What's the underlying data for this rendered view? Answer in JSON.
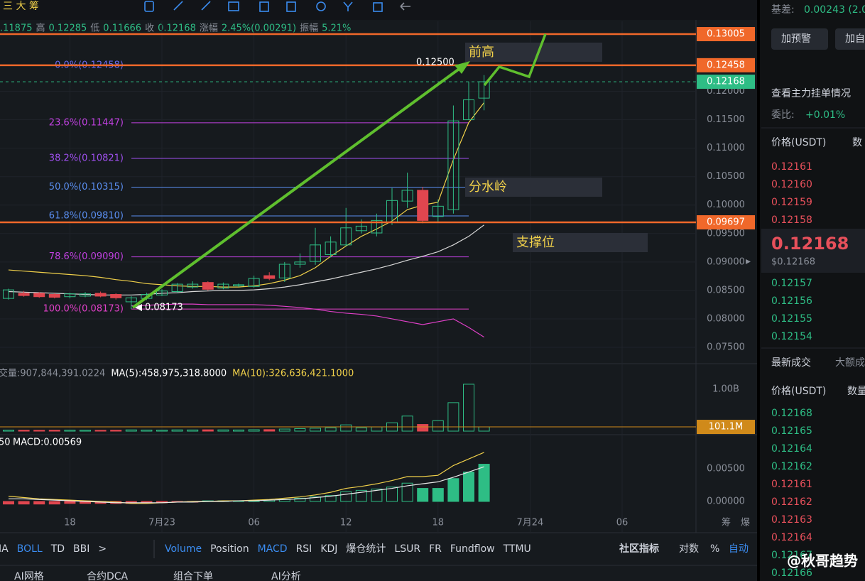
{
  "toolbar": {
    "left_text": "三 大 筹"
  },
  "info_bar": [
    ".11875",
    "高",
    "0.12285",
    "低",
    "0.11666",
    "收",
    "0.12168",
    "涨幅",
    "2.45%(0.00291)",
    "振幅",
    "5.21%"
  ],
  "chart": {
    "price": {
      "ylim": [
        0.07238,
        0.1323
      ],
      "yticks": [
        {
          "value": 0.12,
          "label": "0.12000"
        },
        {
          "value": 0.115,
          "label": "0.11500"
        },
        {
          "value": 0.11,
          "label": "0.11000"
        },
        {
          "value": 0.105,
          "label": "0.10500"
        },
        {
          "value": 0.1,
          "label": "0.10000"
        },
        {
          "value": 0.095,
          "label": "0.09500"
        },
        {
          "value": 0.09,
          "label": "0.09000"
        },
        {
          "value": 0.085,
          "label": "0.08500"
        },
        {
          "value": 0.08,
          "label": "0.08000"
        },
        {
          "value": 0.075,
          "label": "0.07500"
        }
      ],
      "badges": [
        {
          "value": 0.13005,
          "color": "#f0682a",
          "line": "solid"
        },
        {
          "value": 0.12458,
          "color": "#f0682a",
          "line": "solid"
        },
        {
          "value": 0.12168,
          "color": "#2ebd85",
          "line": "dashed"
        },
        {
          "value": 0.09697,
          "color": "#f0682a",
          "line": "solid"
        }
      ],
      "lines": [
        {
          "color": "#f0d04a",
          "values": [
            0.0886,
            0.0884,
            0.0882,
            0.088,
            0.0878,
            0.0876,
            0.0873,
            0.0869,
            0.0866,
            0.0862,
            0.086,
            0.0858,
            0.0857,
            0.0857,
            0.0856,
            0.0856,
            0.0858,
            0.0862,
            0.0868,
            0.0876,
            0.089,
            0.091,
            0.0928,
            0.0945,
            0.0958,
            0.0972,
            0.0992,
            0.1,
            0.1005,
            0.108,
            0.1145,
            0.118
          ]
        },
        {
          "color": "#d8d8d8",
          "values": [
            0.0848,
            0.0847,
            0.0846,
            0.0845,
            0.0844,
            0.0843,
            0.0842,
            0.0842,
            0.0842,
            0.0843,
            0.0845,
            0.0846,
            0.0848,
            0.0849,
            0.085,
            0.085,
            0.0851,
            0.0853,
            0.0856,
            0.086,
            0.0865,
            0.087,
            0.0876,
            0.0882,
            0.0888,
            0.0895,
            0.0903,
            0.091,
            0.0918,
            0.093,
            0.0945,
            0.0965
          ]
        },
        {
          "color": "#e040c8",
          "values": [
            null,
            null,
            null,
            null,
            null,
            null,
            null,
            null,
            0.0823,
            0.0824,
            0.0825,
            0.0826,
            0.0826,
            0.0825,
            0.0825,
            0.0825,
            0.0825,
            0.0824,
            0.0822,
            0.082,
            0.0817,
            0.0813,
            0.081,
            0.0808,
            0.0805,
            0.08,
            0.0795,
            0.079,
            0.0795,
            0.08,
            0.0785,
            0.0768
          ]
        }
      ]
    },
    "candles": [
      {
        "open": 0.0836,
        "high": 0.0853,
        "low": 0.0834,
        "close": 0.0851
      },
      {
        "open": 0.0845,
        "high": 0.0849,
        "low": 0.0839,
        "close": 0.0841
      },
      {
        "open": 0.0845,
        "high": 0.0847,
        "low": 0.0837,
        "close": 0.0839
      },
      {
        "open": 0.0843,
        "high": 0.0845,
        "low": 0.0836,
        "close": 0.0838
      },
      {
        "open": 0.0839,
        "high": 0.0846,
        "low": 0.0836,
        "close": 0.0844
      },
      {
        "open": 0.084,
        "high": 0.0847,
        "low": 0.0838,
        "close": 0.0844
      },
      {
        "open": 0.0845,
        "high": 0.0848,
        "low": 0.0838,
        "close": 0.084
      },
      {
        "open": 0.0843,
        "high": 0.0845,
        "low": 0.0834,
        "close": 0.0837
      },
      {
        "open": 0.083,
        "high": 0.084,
        "low": 0.08173,
        "close": 0.0837
      },
      {
        "open": 0.0836,
        "high": 0.0846,
        "low": 0.0833,
        "close": 0.0843
      },
      {
        "open": 0.0842,
        "high": 0.0852,
        "low": 0.084,
        "close": 0.0849
      },
      {
        "open": 0.0848,
        "high": 0.0863,
        "low": 0.0846,
        "close": 0.0861
      },
      {
        "open": 0.0856,
        "high": 0.0866,
        "low": 0.0853,
        "close": 0.0861
      },
      {
        "open": 0.0864,
        "high": 0.0866,
        "low": 0.085,
        "close": 0.0852
      },
      {
        "open": 0.0854,
        "high": 0.0864,
        "low": 0.0852,
        "close": 0.0861
      },
      {
        "open": 0.0858,
        "high": 0.0862,
        "low": 0.0856,
        "close": 0.086
      },
      {
        "open": 0.0857,
        "high": 0.0876,
        "low": 0.0855,
        "close": 0.0871
      },
      {
        "open": 0.0876,
        "high": 0.0882,
        "low": 0.0868,
        "close": 0.0871
      },
      {
        "open": 0.0872,
        "high": 0.09,
        "low": 0.0865,
        "close": 0.0896
      },
      {
        "open": 0.0896,
        "high": 0.0915,
        "low": 0.089,
        "close": 0.09
      },
      {
        "open": 0.0901,
        "high": 0.096,
        "low": 0.0895,
        "close": 0.093
      },
      {
        "open": 0.0913,
        "high": 0.0945,
        "low": 0.0908,
        "close": 0.0935
      },
      {
        "open": 0.093,
        "high": 0.0995,
        "low": 0.0928,
        "close": 0.096
      },
      {
        "open": 0.0955,
        "high": 0.0975,
        "low": 0.095,
        "close": 0.0963
      },
      {
        "open": 0.0951,
        "high": 0.0985,
        "low": 0.0945,
        "close": 0.0973
      },
      {
        "open": 0.097,
        "high": 0.103,
        "low": 0.0965,
        "close": 0.1008
      },
      {
        "open": 0.1007,
        "high": 0.1057,
        "low": 0.0995,
        "close": 0.1026
      },
      {
        "open": 0.1026,
        "high": 0.1032,
        "low": 0.0968,
        "close": 0.0973
      },
      {
        "open": 0.098,
        "high": 0.101,
        "low": 0.097,
        "close": 0.0998
      },
      {
        "open": 0.0992,
        "high": 0.1175,
        "low": 0.0985,
        "close": 0.1148
      },
      {
        "open": 0.115,
        "high": 0.1217,
        "low": 0.115,
        "close": 0.1185
      },
      {
        "open": 0.1188,
        "high": 0.12285,
        "low": 0.11666,
        "close": 0.12168
      }
    ],
    "fib_levels": [
      {
        "label": "0.0%(0.12458)",
        "value": 0.12458,
        "color": "#6a6af0"
      },
      {
        "label": "23.6%(0.11447)",
        "value": 0.11447,
        "color": "#c040e0"
      },
      {
        "label": "38.2%(0.10821)",
        "value": 0.10821,
        "color": "#a050f0"
      },
      {
        "label": "50.0%(0.10315)",
        "value": 0.10315,
        "color": "#5a8ef0"
      },
      {
        "label": "61.8%(0.09810)",
        "value": 0.0981,
        "color": "#5a8ef0"
      },
      {
        "label": "78.6%(0.09090)",
        "value": 0.0909,
        "color": "#c040e0"
      },
      {
        "label": "100.0%(0.08173)",
        "value": 0.08173,
        "color": "#e040c8"
      }
    ],
    "annotations": {
      "high_label": "0.12500",
      "low_label": "0.08173",
      "prev_high": "前高",
      "watershed": "分水岭",
      "support": "支撑位"
    },
    "x_labels": [
      "18",
      "7月23",
      "06",
      "12",
      "18",
      "7月24",
      "06"
    ],
    "axis_corner": [
      "筹",
      "爆"
    ],
    "volume": {
      "ylim": [
        0,
        1560000000
      ],
      "header": [
        "交量:907,844,391.0224",
        "MA(5):458,975,318.8000",
        "MA(10):326,636,421.1000"
      ],
      "yticks": [
        {
          "value": 1000000000,
          "label": "1.00B"
        }
      ],
      "badge": {
        "value": 101100000,
        "label": "101.1M"
      },
      "values": [
        25000000,
        22000000,
        20000000,
        22000000,
        24000000,
        22000000,
        20000000,
        22000000,
        30000000,
        26000000,
        24000000,
        30000000,
        28000000,
        32000000,
        30000000,
        28000000,
        34000000,
        36000000,
        50000000,
        60000000,
        70000000,
        80000000,
        150000000,
        80000000,
        100000000,
        200000000,
        360000000,
        160000000,
        250000000,
        680000000,
        1120000000,
        101100000
      ]
    },
    "macd": {
      "ylim": [
        -0.00424,
        0.00989
      ],
      "header": [
        "50",
        "MACD:0.00569"
      ],
      "yticks": [
        {
          "value": 0.005,
          "label": "0.00500"
        },
        {
          "value": 0,
          "label": "0.00000"
        }
      ],
      "histogram": [
        -0.0004,
        -0.0004,
        -0.0004,
        -0.0004,
        -0.0003,
        -0.0003,
        -0.0003,
        -0.0003,
        -0.0003,
        -0.0002,
        -0.0002,
        -0.0001,
        -0.0001,
        0.0001,
        0.0001,
        0.0001,
        0.0001,
        0.0002,
        0.0003,
        0.0005,
        0.0007,
        0.0009,
        0.0015,
        0.0017,
        0.0019,
        0.0022,
        0.0028,
        0.002,
        0.002,
        0.0035,
        0.0045,
        0.0057
      ],
      "lines": [
        {
          "color": "#f0d04a",
          "values": [
            0.0008,
            0.0006,
            0.0004,
            0.0003,
            0.0002,
            0.0001,
            0,
            -0.0001,
            -0.0003,
            -0.0003,
            -0.0002,
            -0.0001,
            0,
            0,
            0.0001,
            0.0001,
            0.0002,
            0.0003,
            0.0005,
            0.0007,
            0.001,
            0.0014,
            0.002,
            0.0023,
            0.0027,
            0.0032,
            0.0038,
            0.0038,
            0.004,
            0.0055,
            0.0065,
            0.0075
          ]
        },
        {
          "color": "#e8e8e8",
          "values": [
            0.0004,
            0.0004,
            0.0003,
            0.0002,
            0.0001,
            0,
            -0.0001,
            -0.0002,
            -0.0002,
            -0.0002,
            -0.0002,
            -0.0001,
            -0.0001,
            0,
            0,
            0.0001,
            0.0001,
            0.0002,
            0.0003,
            0.0004,
            0.0006,
            0.0008,
            0.0011,
            0.0014,
            0.0017,
            0.002,
            0.0024,
            0.0027,
            0.003,
            0.0037,
            0.0045,
            0.0053
          ]
        }
      ]
    }
  },
  "indicator_tabs": {
    "main": [
      "IA",
      "BOLL",
      "TD",
      "BBI",
      ">"
    ],
    "sub": [
      "Volume",
      "Position",
      "MACD",
      "RSI",
      "KDJ",
      "爆仓统计",
      "LSUR",
      "FR",
      "Fundflow",
      "TTMU"
    ],
    "right": [
      "社区指标",
      "对数",
      "%",
      "自动"
    ]
  },
  "bottom_tabs": [
    "AI网格",
    "合约DCA",
    "组合下单",
    "AI分析"
  ],
  "panel": {
    "basis_label": "基差:",
    "basis_value": "0.00243 (2.0",
    "buttons": [
      "加预警",
      "加自"
    ],
    "depth_link": "查看主力挂单情况",
    "ratio_label": "委比:",
    "ratio_value": "+0.01%",
    "book_header": [
      "价格(USDT)",
      "数"
    ],
    "asks": [
      "0.12161",
      "0.12160",
      "0.12159",
      "0.12158"
    ],
    "last_price": "0.12168",
    "last_usd": "$0.12168",
    "bids": [
      "0.12157",
      "0.12156",
      "0.12155",
      "0.12154"
    ],
    "trades_tabs": [
      "最新成交",
      "大额成"
    ],
    "trades_header": [
      "价格(USDT)",
      "数量"
    ],
    "trades": [
      {
        "price": "0.12168",
        "side": "buy"
      },
      {
        "price": "0.12165",
        "side": "buy"
      },
      {
        "price": "0.12164",
        "side": "buy"
      },
      {
        "price": "0.12162",
        "side": "buy"
      },
      {
        "price": "0.12161",
        "side": "sell"
      },
      {
        "price": "0.12162",
        "side": "sell"
      },
      {
        "price": "0.12163",
        "side": "sell"
      },
      {
        "price": "0.12164",
        "side": "sell"
      },
      {
        "price": "0.12167",
        "side": "buy"
      },
      {
        "price": "0.12166",
        "side": "buy"
      }
    ]
  },
  "watermark": "@秋哥趋势"
}
